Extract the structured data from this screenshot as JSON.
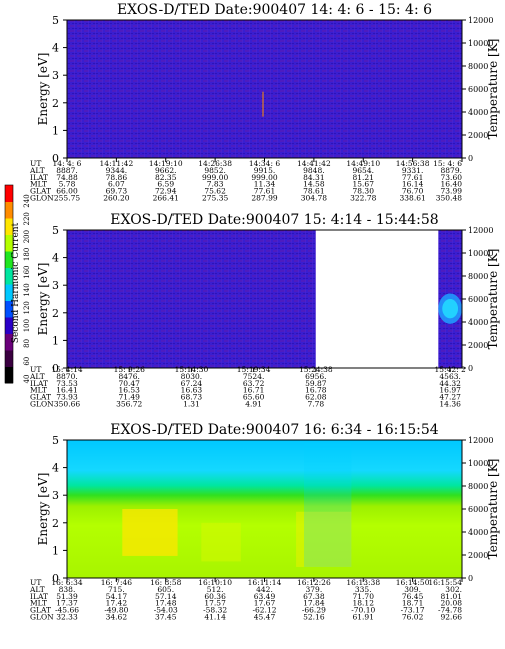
{
  "colorbar": {
    "label": "Second Harmonic Current",
    "ticks": [
      "40",
      "60",
      "80",
      "100",
      "120",
      "140",
      "160",
      "180",
      "200",
      "220",
      "240"
    ],
    "colors": [
      "#000000",
      "#3a0040",
      "#6a007a",
      "#2a00c8",
      "#0050ff",
      "#00c8ff",
      "#00e6a0",
      "#20e620",
      "#b4ff00",
      "#ffe600",
      "#ff8c00",
      "#ff0000"
    ]
  },
  "chart_data": [
    {
      "type": "heatmap",
      "title": "EXOS-D/TED   Date:900407  14: 4: 6 - 15: 4: 6",
      "ylabel": "Energy [eV]",
      "ylabel_right": "Temperature [K]",
      "ylim": [
        0,
        5
      ],
      "ylim_right": [
        0,
        12000
      ],
      "yticks": [
        "0",
        "1",
        "2",
        "3",
        "4",
        "5"
      ],
      "yticks_right": [
        "0",
        "2000",
        "4000",
        "6000",
        "8000",
        "10000",
        "12000"
      ],
      "fill": "dark-blue",
      "gap": null,
      "rows": [
        {
          "label": "UT",
          "values": [
            "14: 4: 6",
            "14:11:42",
            "14:19:10",
            "14:26:38",
            "14:34: 6",
            "14:41:42",
            "14:49:10",
            "14:56:38",
            "15: 4: 6"
          ]
        },
        {
          "label": "ALT",
          "values": [
            "8887.",
            "9344.",
            "9662.",
            "9852.",
            "9915.",
            "9848.",
            "9654.",
            "9331.",
            "8879."
          ]
        },
        {
          "label": "ILAT",
          "values": [
            "74.88",
            "78.86",
            "82.35",
            "999.00",
            "999.00",
            "84.31",
            "81.21",
            "77.61",
            "73.60"
          ]
        },
        {
          "label": "MLT",
          "values": [
            "5.78",
            "6.07",
            "6.59",
            "7.83",
            "11.34",
            "14.58",
            "15.67",
            "16.14",
            "16.40"
          ]
        },
        {
          "label": "GLAT",
          "values": [
            "66.00",
            "69.73",
            "72.94",
            "75.62",
            "77.61",
            "78.61",
            "78.30",
            "76.70",
            "73.99"
          ]
        },
        {
          "label": "GLON",
          "values": [
            "255.75",
            "260.20",
            "266.41",
            "275.35",
            "287.99",
            "304.78",
            "322.78",
            "338.61",
            "350.48"
          ]
        }
      ]
    },
    {
      "type": "heatmap",
      "title": "EXOS-D/TED   Date:900407  15: 4:14 - 15:44:58",
      "ylabel": "Energy [eV]",
      "ylabel_right": "Temperature [K]",
      "ylim": [
        0,
        5
      ],
      "ylim_right": [
        0,
        12000
      ],
      "yticks": [
        "0",
        "1",
        "2",
        "3",
        "4",
        "5"
      ],
      "yticks_right": [
        "0",
        "2000",
        "4000",
        "6000",
        "8000",
        "10000",
        "12000"
      ],
      "fill": "dark-blue",
      "gap": [
        0.63,
        0.94
      ],
      "rows": [
        {
          "label": "UT",
          "values": [
            "15: 4:14",
            "15: 9:26",
            "15:14:30",
            "15:19:34",
            "15:24:38",
            "15:42: 2"
          ]
        },
        {
          "label": "ALT",
          "values": [
            "8870.",
            "8476.",
            "8030.",
            "7524.",
            "6956.",
            "4563."
          ]
        },
        {
          "label": "ILAT",
          "values": [
            "73.53",
            "70.47",
            "67.24",
            "63.72",
            "59.87",
            "44.32"
          ]
        },
        {
          "label": "MLT",
          "values": [
            "16.41",
            "16.53",
            "16.63",
            "16.71",
            "16.78",
            "16.97"
          ]
        },
        {
          "label": "GLAT",
          "values": [
            "73.93",
            "71.49",
            "68.73",
            "65.60",
            "62.08",
            "47.27"
          ]
        },
        {
          "label": "GLON",
          "values": [
            "350.66",
            "356.72",
            "1.31",
            "4.91",
            "7.78",
            "14.36"
          ]
        }
      ]
    },
    {
      "type": "heatmap",
      "title": "EXOS-D/TED   Date:900407  16: 6:34 - 16:15:54",
      "ylabel": "Energy [eV]",
      "ylabel_right": "Temperature [K]",
      "ylim": [
        0,
        5
      ],
      "ylim_right": [
        0,
        12000
      ],
      "yticks": [
        "0",
        "1",
        "2",
        "3",
        "4",
        "5"
      ],
      "yticks_right": [
        "0",
        "2000",
        "4000",
        "6000",
        "8000",
        "10000",
        "12000"
      ],
      "fill": "layered",
      "gap": null,
      "rows": [
        {
          "label": "UT",
          "values": [
            "16: 6:34",
            "16: 7:46",
            "16: 8:58",
            "16:10:10",
            "16:11:14",
            "16:12:26",
            "16:13:38",
            "16:14:50",
            "16:15:54"
          ]
        },
        {
          "label": "ALT",
          "values": [
            "838.",
            "715.",
            "605.",
            "512.",
            "442.",
            "379.",
            "335.",
            "309.",
            "302."
          ]
        },
        {
          "label": "ILAT",
          "values": [
            "51.39",
            "54.17",
            "57.14",
            "60.36",
            "63.49",
            "67.38",
            "71.70",
            "76.45",
            "81.01"
          ]
        },
        {
          "label": "MLT",
          "values": [
            "17.37",
            "17.42",
            "17.48",
            "17.57",
            "17.67",
            "17.84",
            "18.12",
            "18.71",
            "20.08"
          ]
        },
        {
          "label": "GLAT",
          "values": [
            "-45.66",
            "-49.80",
            "-54.03",
            "-58.32",
            "-62.12",
            "-66.29",
            "-70.10",
            "-73.17",
            "-74.78"
          ]
        },
        {
          "label": "GLON",
          "values": [
            "32.33",
            "34.62",
            "37.45",
            "41.14",
            "45.47",
            "52.16",
            "61.91",
            "76.02",
            "92.66"
          ]
        }
      ]
    }
  ]
}
